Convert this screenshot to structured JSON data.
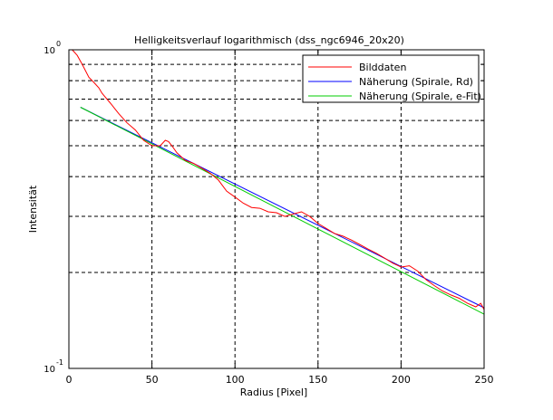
{
  "chart_data": {
    "type": "line",
    "title": "Helligkeitsverlauf logarithmisch (dss_ngc6946_20x20)",
    "xlabel": "Radius [Pixel]",
    "ylabel": "Intensität",
    "xlim": [
      0,
      250
    ],
    "ylim": [
      0.1,
      1
    ],
    "yscale": "log",
    "grid": true,
    "legend_position": "top-right",
    "x_ticks": [
      0,
      50,
      100,
      150,
      200,
      250
    ],
    "x_tick_labels": [
      "0",
      "50",
      "100",
      "150",
      "200",
      "250"
    ],
    "y_tick_labels": [
      {
        "value": 1,
        "base": "10",
        "exp": "0"
      },
      {
        "value": 0.1,
        "base": "10",
        "exp": "-1"
      }
    ],
    "y_minor_ticks": [
      0.2,
      0.3,
      0.4,
      0.5,
      0.6,
      0.7,
      0.8,
      0.9
    ],
    "series": [
      {
        "name": "Bilddaten",
        "color": "#ff0000",
        "x": [
          2,
          5,
          8,
          10,
          12,
          15,
          18,
          20,
          25,
          30,
          35,
          40,
          45,
          50,
          55,
          58,
          60,
          62,
          65,
          70,
          75,
          80,
          85,
          90,
          95,
          100,
          105,
          110,
          115,
          120,
          125,
          130,
          135,
          140,
          145,
          150,
          155,
          160,
          165,
          170,
          175,
          180,
          185,
          190,
          195,
          200,
          205,
          210,
          215,
          220,
          225,
          230,
          235,
          240,
          245,
          248,
          250
        ],
        "y": [
          1.0,
          0.96,
          0.9,
          0.86,
          0.82,
          0.79,
          0.76,
          0.73,
          0.68,
          0.63,
          0.59,
          0.56,
          0.52,
          0.5,
          0.5,
          0.52,
          0.515,
          0.5,
          0.475,
          0.45,
          0.44,
          0.425,
          0.41,
          0.39,
          0.36,
          0.345,
          0.33,
          0.32,
          0.318,
          0.31,
          0.308,
          0.3,
          0.305,
          0.31,
          0.3,
          0.285,
          0.275,
          0.265,
          0.26,
          0.253,
          0.245,
          0.237,
          0.23,
          0.222,
          0.214,
          0.208,
          0.21,
          0.202,
          0.19,
          0.182,
          0.175,
          0.17,
          0.166,
          0.16,
          0.156,
          0.16,
          0.153
        ]
      },
      {
        "name": "Näherung (Spirale, Rd)",
        "color": "#0000ff",
        "x": [
          7,
          250
        ],
        "y": [
          0.66,
          0.155
        ]
      },
      {
        "name": "Näherung (Spirale, e-Fit)",
        "color": "#00cc00",
        "x": [
          7,
          250
        ],
        "y": [
          0.66,
          0.148
        ]
      }
    ]
  }
}
